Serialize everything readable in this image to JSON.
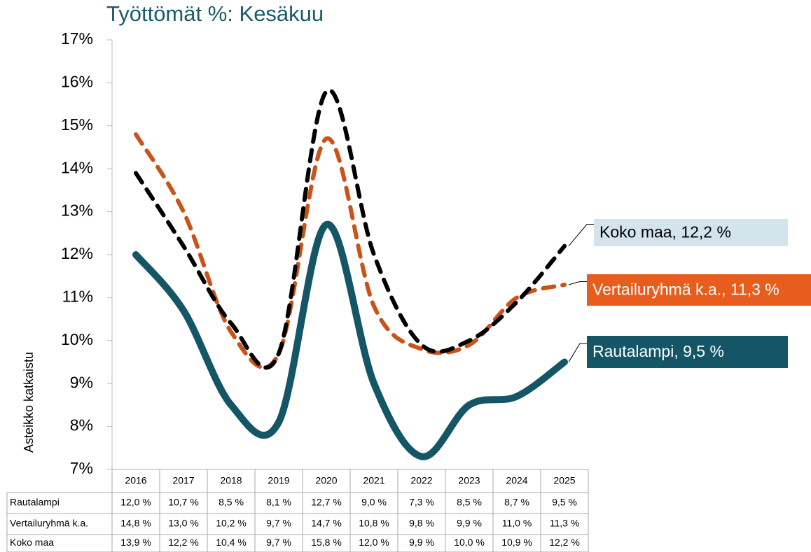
{
  "chart_data": {
    "type": "line",
    "title": "Työttömät %: Kesäkuu",
    "ylabel": "Asteikko katkaistu",
    "categories": [
      "2016",
      "2017",
      "2018",
      "2019",
      "2020",
      "2021",
      "2022",
      "2023",
      "2024",
      "2025"
    ],
    "ylim": [
      7,
      17
    ],
    "yticks": [
      {
        "value": 7,
        "label": "7%"
      },
      {
        "value": 8,
        "label": "8%"
      },
      {
        "value": 9,
        "label": "9%"
      },
      {
        "value": 10,
        "label": "10%"
      },
      {
        "value": 11,
        "label": "11%"
      },
      {
        "value": 12,
        "label": "12%"
      },
      {
        "value": 13,
        "label": "13%"
      },
      {
        "value": 14,
        "label": "14%"
      },
      {
        "value": 15,
        "label": "15%"
      },
      {
        "value": 16,
        "label": "16%"
      },
      {
        "value": 17,
        "label": "17%"
      }
    ],
    "series": [
      {
        "name": "Rautalampi",
        "color": "#145566",
        "dashed": false,
        "values": [
          12.0,
          10.7,
          8.5,
          8.1,
          12.7,
          9.0,
          7.3,
          8.5,
          8.7,
          9.5
        ],
        "value_labels": [
          "12,0 %",
          "10,7 %",
          "8,5 %",
          "8,1 %",
          "12,7 %",
          "9,0 %",
          "7,3 %",
          "8,5 %",
          "8,7 %",
          "9,5 %"
        ]
      },
      {
        "name": "Vertailuryhmä k.a.",
        "color": "#c9531a",
        "dashed": true,
        "values": [
          14.8,
          13.0,
          10.2,
          9.7,
          14.7,
          10.8,
          9.8,
          9.9,
          11.0,
          11.3
        ],
        "value_labels": [
          "14,8 %",
          "13,0 %",
          "10,2 %",
          "9,7 %",
          "14,7 %",
          "10,8 %",
          "9,8 %",
          "9,9 %",
          "11,0 %",
          "11,3 %"
        ]
      },
      {
        "name": "Koko maa",
        "color": "#000000",
        "dashed": true,
        "values": [
          13.9,
          12.2,
          10.4,
          9.7,
          15.8,
          12.0,
          9.9,
          10.0,
          10.9,
          12.2
        ],
        "value_labels": [
          "13,9 %",
          "12,2 %",
          "10,4 %",
          "9,7 %",
          "15,8 %",
          "12,0 %",
          "9,9 %",
          "10,0 %",
          "10,9 %",
          "12,2 %"
        ]
      }
    ],
    "annotations": [
      {
        "text": "Rautalampi, 9,5 %",
        "background": "#145566",
        "color": "#ffffff"
      },
      {
        "text": "Vertailuryhmä k.a., 11,3 %",
        "background": "#e85d1e",
        "color": "#ffffff"
      },
      {
        "text": "Koko maa, 12,2 %",
        "background": "#d4e4ec",
        "color": "#000000"
      }
    ]
  }
}
